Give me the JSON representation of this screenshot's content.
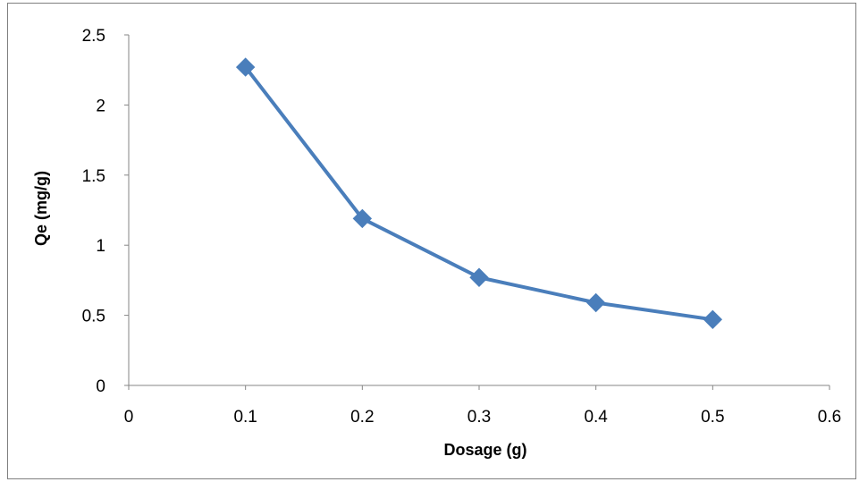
{
  "chart_data": {
    "type": "line",
    "title": "",
    "xlabel": "Dosage (g)",
    "ylabel": "Qe (mg/g)",
    "xlim": [
      0,
      0.6
    ],
    "ylim": [
      0,
      2.5
    ],
    "xticks": [
      "0",
      "0.1",
      "0.2",
      "0.3",
      "0.4",
      "0.5",
      "0.6"
    ],
    "yticks": [
      "0",
      "0.5",
      "1",
      "1.5",
      "2",
      "2.5"
    ],
    "grid": false,
    "legend": "none",
    "marker": "diamond",
    "series": [
      {
        "color": "#4a7ebb",
        "x": [
          0.1,
          0.2,
          0.3,
          0.4,
          0.5
        ],
        "y": [
          2.27,
          1.19,
          0.77,
          0.59,
          0.47
        ]
      }
    ]
  }
}
